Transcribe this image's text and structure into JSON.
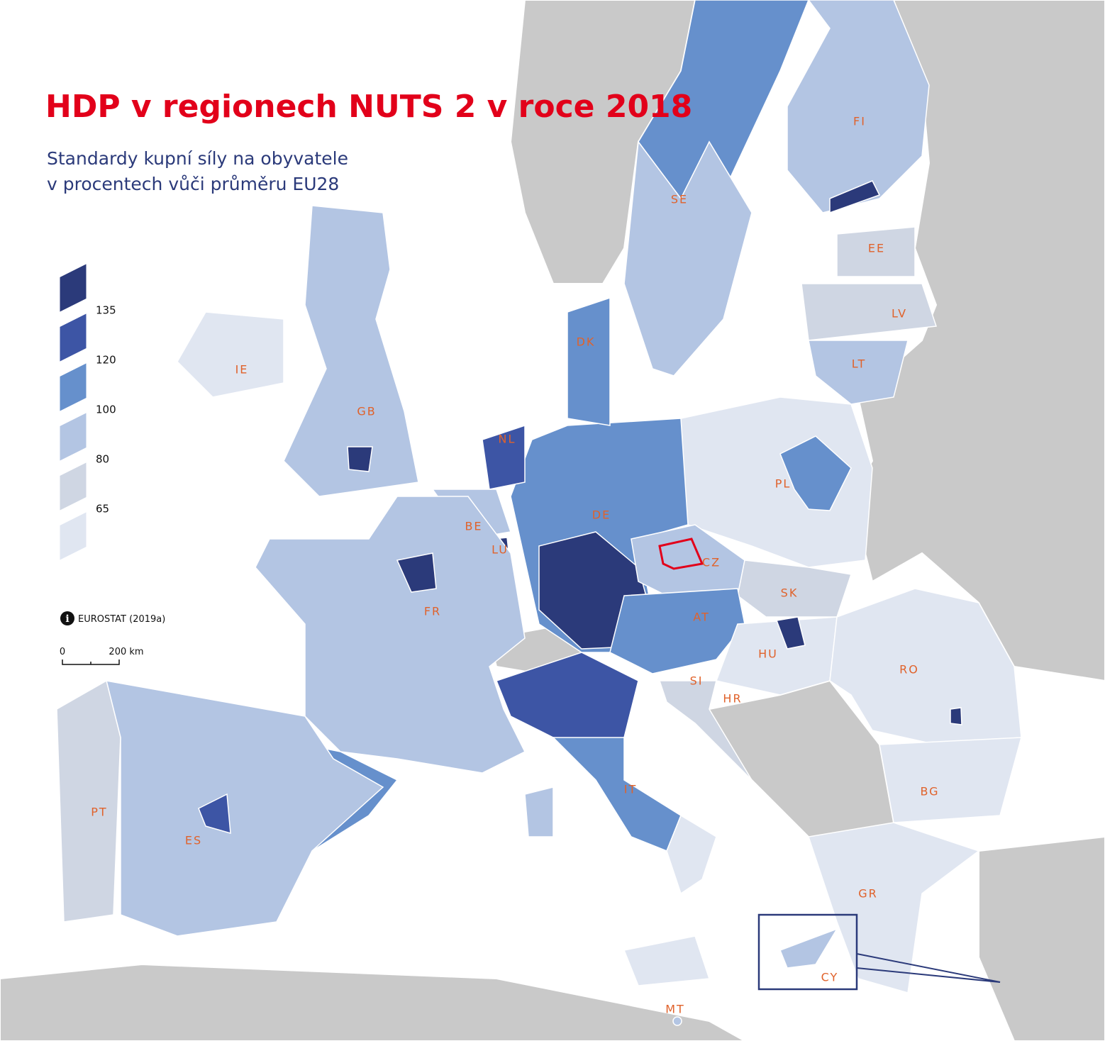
{
  "title": "HDP v regionech NUTS 2 v roce 2018",
  "subtitle": [
    "Standardy kupní síly na obyvatele",
    "v procentech vůči průměru EU28"
  ],
  "legend": {
    "thresholds": [
      135,
      120,
      100,
      80,
      65
    ],
    "colors": [
      "#2b3a7a",
      "#3d55a5",
      "#6690cc",
      "#b3c5e3",
      "#cfd6e3",
      "#e0e6f1"
    ]
  },
  "source": "EUROSTAT (2019a)",
  "scale": {
    "labels": [
      "0",
      "200 km"
    ]
  },
  "labels": [
    "FI",
    "SE",
    "EE",
    "LV",
    "LT",
    "DK",
    "IE",
    "GB",
    "NL",
    "BE",
    "LU",
    "DE",
    "PL",
    "CZ",
    "SK",
    "AT",
    "HU",
    "RO",
    "SI",
    "HR",
    "FR",
    "IT",
    "BG",
    "PT",
    "ES",
    "GR",
    "CY",
    "MT"
  ]
}
